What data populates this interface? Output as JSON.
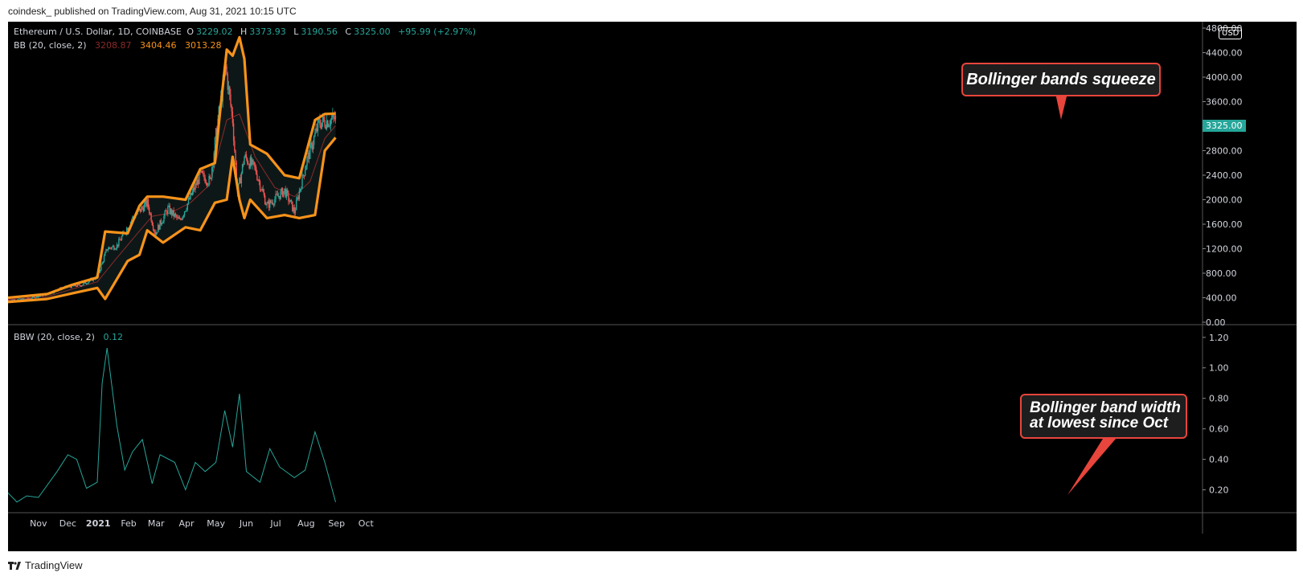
{
  "publisher_line": "coindesk_ published on TradingView.com, Aug 31, 2021 10:15 UTC",
  "footer": {
    "brand": "TradingView",
    "logo_icon": "tradingview-logo-icon"
  },
  "currency_badge": "USD",
  "last_price_tag": "3325.00",
  "colors": {
    "up": "#26a69a",
    "down": "#ef5350",
    "band": "#f7931a",
    "basis": "#8b2a2a",
    "bbw": "#26a69a",
    "callout_border": "#e8453c"
  },
  "legend": {
    "symbol": "Ethereum / U.S. Dollar, 1D, COINBASE",
    "o_label": "O",
    "o_value": "3229.02",
    "h_label": "H",
    "h_value": "3373.93",
    "l_label": "L",
    "l_value": "3190.56",
    "c_label": "C",
    "c_value": "3325.00",
    "change": "+95.99 (+2.97%)",
    "bb_label": "BB (20, close, 2)",
    "bb_basis": "3208.87",
    "bb_upper": "3404.46",
    "bb_lower": "3013.28",
    "bbw_label": "BBW (20, close, 2)",
    "bbw_value": "0.12"
  },
  "annotations": {
    "squeeze": "Bollinger bands squeeze",
    "width_line1": "Bollinger band width",
    "width_line2": "at lowest since Oct"
  },
  "chart_data": [
    {
      "type": "candlestick",
      "title": "Ethereum / U.S. Dollar, 1D, COINBASE",
      "ylabel": "USD",
      "ylim": [
        0,
        4800
      ],
      "y_ticks": [
        "0.00",
        "400.00",
        "800.00",
        "1200.00",
        "1600.00",
        "2000.00",
        "2400.00",
        "2800.00",
        "3200.00",
        "3600.00",
        "4000.00",
        "4400.00",
        "4800.00"
      ],
      "x_ticks": [
        "Nov",
        "Dec",
        "2021",
        "Feb",
        "Mar",
        "Apr",
        "May",
        "Jun",
        "Jul",
        "Aug",
        "Sep",
        "Oct"
      ],
      "close_series": {
        "x": [
          "2020-10-01",
          "2020-10-20",
          "2020-11-10",
          "2020-11-25",
          "2020-12-15",
          "2020-12-31",
          "2021-01-10",
          "2021-01-20",
          "2021-02-05",
          "2021-02-20",
          "2021-02-28",
          "2021-03-13",
          "2021-03-25",
          "2021-04-15",
          "2021-04-25",
          "2021-05-03",
          "2021-05-11",
          "2021-05-18",
          "2021-05-23",
          "2021-05-30",
          "2021-06-10",
          "2021-06-22",
          "2021-07-10",
          "2021-07-20",
          "2021-08-01",
          "2021-08-14",
          "2021-08-31"
        ],
        "values": [
          360,
          380,
          460,
          560,
          610,
          740,
          1200,
          1250,
          1700,
          1950,
          1450,
          1850,
          1650,
          2400,
          2300,
          3300,
          4150,
          3300,
          2100,
          2700,
          2500,
          1900,
          2150,
          1800,
          2600,
          3250,
          3325
        ]
      },
      "series": [
        {
          "name": "BB upper",
          "x": [
            "2020-10-01",
            "2020-11-10",
            "2020-12-05",
            "2020-12-31",
            "2021-01-08",
            "2021-01-31",
            "2021-02-12",
            "2021-02-20",
            "2021-03-08",
            "2021-03-31",
            "2021-04-15",
            "2021-04-30",
            "2021-05-05",
            "2021-05-12",
            "2021-05-18",
            "2021-05-25",
            "2021-05-30",
            "2021-06-05",
            "2021-06-22",
            "2021-07-10",
            "2021-07-25",
            "2021-08-10",
            "2021-08-20",
            "2021-08-31"
          ],
          "values": [
            400,
            460,
            610,
            730,
            1480,
            1450,
            1900,
            2050,
            2050,
            2000,
            2500,
            2600,
            3400,
            4450,
            4350,
            4650,
            4300,
            2900,
            2750,
            2400,
            2350,
            3300,
            3400,
            3404.46
          ]
        },
        {
          "name": "BB basis",
          "x": [
            "2020-10-01",
            "2020-11-10",
            "2020-12-05",
            "2020-12-31",
            "2021-01-20",
            "2021-02-10",
            "2021-02-25",
            "2021-03-15",
            "2021-04-05",
            "2021-04-25",
            "2021-05-12",
            "2021-05-25",
            "2021-06-10",
            "2021-06-30",
            "2021-07-20",
            "2021-08-05",
            "2021-08-20",
            "2021-08-31"
          ],
          "values": [
            370,
            420,
            540,
            660,
            1050,
            1450,
            1730,
            1780,
            1950,
            2250,
            3300,
            3400,
            2700,
            2200,
            2050,
            2300,
            3000,
            3208.87
          ]
        },
        {
          "name": "BB lower",
          "x": [
            "2020-10-01",
            "2020-11-10",
            "2020-12-05",
            "2020-12-31",
            "2021-01-08",
            "2021-01-31",
            "2021-02-12",
            "2021-02-20",
            "2021-03-08",
            "2021-03-31",
            "2021-04-15",
            "2021-04-30",
            "2021-05-12",
            "2021-05-18",
            "2021-05-25",
            "2021-05-30",
            "2021-06-05",
            "2021-06-22",
            "2021-07-10",
            "2021-07-25",
            "2021-08-10",
            "2021-08-20",
            "2021-08-31"
          ],
          "values": [
            330,
            380,
            470,
            560,
            380,
            1000,
            1100,
            1500,
            1300,
            1550,
            1500,
            1950,
            2000,
            2700,
            2000,
            1700,
            2000,
            1700,
            1750,
            1700,
            1750,
            2800,
            3013.28
          ]
        }
      ]
    },
    {
      "type": "line",
      "title": "BBW (20, close, 2)",
      "ylim": [
        0.05,
        1.22
      ],
      "y_ticks": [
        "0.20",
        "0.40",
        "0.60",
        "0.80",
        "1.00",
        "1.20"
      ],
      "series": [
        {
          "name": "BBW",
          "x": [
            "2020-10-01",
            "2020-10-10",
            "2020-10-20",
            "2020-11-01",
            "2020-11-20",
            "2020-12-01",
            "2020-12-10",
            "2020-12-20",
            "2020-12-31",
            "2021-01-05",
            "2021-01-10",
            "2021-01-20",
            "2021-01-28",
            "2021-02-05",
            "2021-02-15",
            "2021-02-25",
            "2021-03-05",
            "2021-03-20",
            "2021-03-31",
            "2021-04-10",
            "2021-04-20",
            "2021-05-01",
            "2021-05-10",
            "2021-05-18",
            "2021-05-25",
            "2021-06-01",
            "2021-06-15",
            "2021-06-25",
            "2021-07-05",
            "2021-07-20",
            "2021-07-31",
            "2021-08-10",
            "2021-08-20",
            "2021-08-31"
          ],
          "values": [
            0.18,
            0.12,
            0.16,
            0.15,
            0.32,
            0.43,
            0.4,
            0.21,
            0.25,
            0.9,
            1.13,
            0.62,
            0.33,
            0.45,
            0.53,
            0.24,
            0.43,
            0.38,
            0.2,
            0.38,
            0.32,
            0.38,
            0.72,
            0.48,
            0.83,
            0.32,
            0.25,
            0.47,
            0.35,
            0.28,
            0.33,
            0.58,
            0.38,
            0.12
          ]
        }
      ]
    }
  ]
}
